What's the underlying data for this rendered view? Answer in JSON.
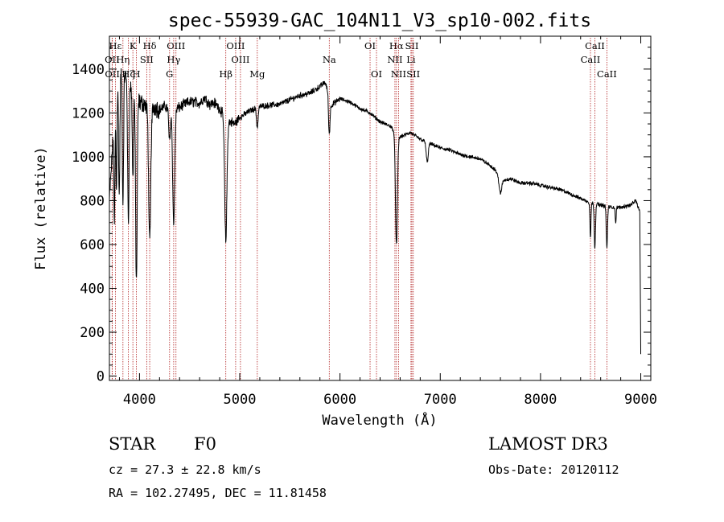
{
  "chart_data": {
    "type": "line",
    "title": "spec-55939-GAC_104N11_V3_sp10-002.fits",
    "xlabel": "Wavelength (Å)",
    "ylabel": "Flux (relative)",
    "xlim": [
      3700,
      9100
    ],
    "ylim": [
      -20,
      1550
    ],
    "x_ticks": [
      4000,
      5000,
      6000,
      7000,
      8000,
      9000
    ],
    "y_ticks": [
      0,
      200,
      400,
      600,
      800,
      1000,
      1200,
      1400
    ],
    "series": [
      {
        "name": "spectrum",
        "continuum": [
          [
            3700,
            800
          ],
          [
            3760,
            1260
          ],
          [
            3800,
            1380
          ],
          [
            3850,
            1380
          ],
          [
            3900,
            1330
          ],
          [
            3950,
            1300
          ],
          [
            4000,
            1250
          ],
          [
            4050,
            1240
          ],
          [
            4100,
            1200
          ],
          [
            4150,
            1230
          ],
          [
            4200,
            1215
          ],
          [
            4250,
            1230
          ],
          [
            4300,
            1220
          ],
          [
            4350,
            1215
          ],
          [
            4400,
            1225
          ],
          [
            4450,
            1240
          ],
          [
            4500,
            1250
          ],
          [
            4550,
            1250
          ],
          [
            4600,
            1245
          ],
          [
            4650,
            1270
          ],
          [
            4700,
            1240
          ],
          [
            4750,
            1245
          ],
          [
            4800,
            1220
          ],
          [
            4850,
            1180
          ],
          [
            4900,
            1160
          ],
          [
            4950,
            1150
          ],
          [
            5000,
            1180
          ],
          [
            5100,
            1210
          ],
          [
            5200,
            1230
          ],
          [
            5300,
            1235
          ],
          [
            5400,
            1240
          ],
          [
            5500,
            1260
          ],
          [
            5600,
            1280
          ],
          [
            5700,
            1290
          ],
          [
            5800,
            1320
          ],
          [
            5850,
            1340
          ],
          [
            5880,
            1300
          ],
          [
            5900,
            1230
          ],
          [
            6000,
            1265
          ],
          [
            6100,
            1250
          ],
          [
            6200,
            1220
          ],
          [
            6300,
            1200
          ],
          [
            6400,
            1160
          ],
          [
            6500,
            1140
          ],
          [
            6560,
            1110
          ],
          [
            6600,
            1090
          ],
          [
            6700,
            1110
          ],
          [
            6800,
            1080
          ],
          [
            6900,
            1060
          ],
          [
            7000,
            1040
          ],
          [
            7100,
            1030
          ],
          [
            7200,
            1010
          ],
          [
            7300,
            1000
          ],
          [
            7400,
            990
          ],
          [
            7500,
            960
          ],
          [
            7550,
            940
          ],
          [
            7600,
            890
          ],
          [
            7700,
            900
          ],
          [
            7800,
            880
          ],
          [
            7900,
            880
          ],
          [
            8000,
            870
          ],
          [
            8100,
            860
          ],
          [
            8200,
            850
          ],
          [
            8300,
            830
          ],
          [
            8400,
            810
          ],
          [
            8500,
            790
          ],
          [
            8600,
            780
          ],
          [
            8700,
            770
          ],
          [
            8800,
            770
          ],
          [
            8900,
            780
          ],
          [
            8950,
            800
          ],
          [
            8990,
            750
          ],
          [
            9000,
            120
          ]
        ],
        "absorption_lines": [
          {
            "wavelength": 3750,
            "depth": 500,
            "width": 5
          },
          {
            "wavelength": 3770,
            "depth": 450,
            "width": 5
          },
          {
            "wavelength": 3798,
            "depth": 550,
            "width": 6
          },
          {
            "wavelength": 3835,
            "depth": 600,
            "width": 6
          },
          {
            "wavelength": 3889,
            "depth": 650,
            "width": 7
          },
          {
            "wavelength": 3934,
            "depth": 420,
            "width": 6
          },
          {
            "wavelength": 3969,
            "depth": 850,
            "width": 8
          },
          {
            "wavelength": 4102,
            "depth": 600,
            "width": 10
          },
          {
            "wavelength": 4300,
            "depth": 150,
            "width": 8
          },
          {
            "wavelength": 4341,
            "depth": 520,
            "width": 10
          },
          {
            "wavelength": 4861,
            "depth": 560,
            "width": 11
          },
          {
            "wavelength": 5175,
            "depth": 90,
            "width": 8
          },
          {
            "wavelength": 5892,
            "depth": 150,
            "width": 7
          },
          {
            "wavelength": 6563,
            "depth": 510,
            "width": 10
          },
          {
            "wavelength": 6870,
            "depth": 90,
            "width": 10
          },
          {
            "wavelength": 7600,
            "depth": 60,
            "width": 12
          },
          {
            "wavelength": 8498,
            "depth": 160,
            "width": 5
          },
          {
            "wavelength": 8542,
            "depth": 200,
            "width": 6
          },
          {
            "wavelength": 8662,
            "depth": 190,
            "width": 6
          },
          {
            "wavelength": 8750,
            "depth": 70,
            "width": 5
          }
        ]
      }
    ],
    "line_markers": [
      {
        "label": "Hε",
        "wavelength": 3760,
        "row": 0
      },
      {
        "label": "K",
        "wavelength": 3934,
        "row": 0
      },
      {
        "label": "Hδ",
        "wavelength": 4102,
        "row": 0
      },
      {
        "label": "OIII",
        "wavelength": 4364,
        "row": 0
      },
      {
        "label": "OIII",
        "wavelength": 4959,
        "row": 0
      },
      {
        "label": "OI",
        "wavelength": 6300,
        "row": 0
      },
      {
        "label": "Hα",
        "wavelength": 6563,
        "row": 0
      },
      {
        "label": "SII",
        "wavelength": 6717,
        "row": 0
      },
      {
        "label": "CaII",
        "wavelength": 8542,
        "row": 0
      },
      {
        "label": "OII",
        "wavelength": 3727,
        "row": 1
      },
      {
        "label": "Hη",
        "wavelength": 3835,
        "row": 1
      },
      {
        "label": "SII",
        "wavelength": 4072,
        "row": 1
      },
      {
        "label": "Hγ",
        "wavelength": 4341,
        "row": 1
      },
      {
        "label": "OIII",
        "wavelength": 5007,
        "row": 1
      },
      {
        "label": "Na",
        "wavelength": 5893,
        "row": 1
      },
      {
        "label": "NII",
        "wavelength": 6548,
        "row": 1
      },
      {
        "label": "Li",
        "wavelength": 6708,
        "row": 1
      },
      {
        "label": "CaII",
        "wavelength": 8498,
        "row": 1
      },
      {
        "label": "OII",
        "wavelength": 3729,
        "row": 2
      },
      {
        "label": "Hζ",
        "wavelength": 3889,
        "row": 2
      },
      {
        "label": "H",
        "wavelength": 3969,
        "row": 2
      },
      {
        "label": "G",
        "wavelength": 4300,
        "row": 2
      },
      {
        "label": "Hβ",
        "wavelength": 4861,
        "row": 2
      },
      {
        "label": "Mg",
        "wavelength": 5175,
        "row": 2
      },
      {
        "label": "OI",
        "wavelength": 6364,
        "row": 2
      },
      {
        "label": "NII",
        "wavelength": 6584,
        "row": 2
      },
      {
        "label": "SII",
        "wavelength": 6731,
        "row": 2
      },
      {
        "label": "CaII",
        "wavelength": 8662,
        "row": 2
      }
    ],
    "marker_color": "#b22222"
  },
  "info": {
    "obj_class": "STAR",
    "subclass": "F0",
    "survey": "LAMOST DR3",
    "cz": "cz = 27.3 ± 22.8 km/s",
    "obs_date": "Obs-Date: 20120112",
    "radec": "RA = 102.27495, DEC =  11.81458"
  }
}
